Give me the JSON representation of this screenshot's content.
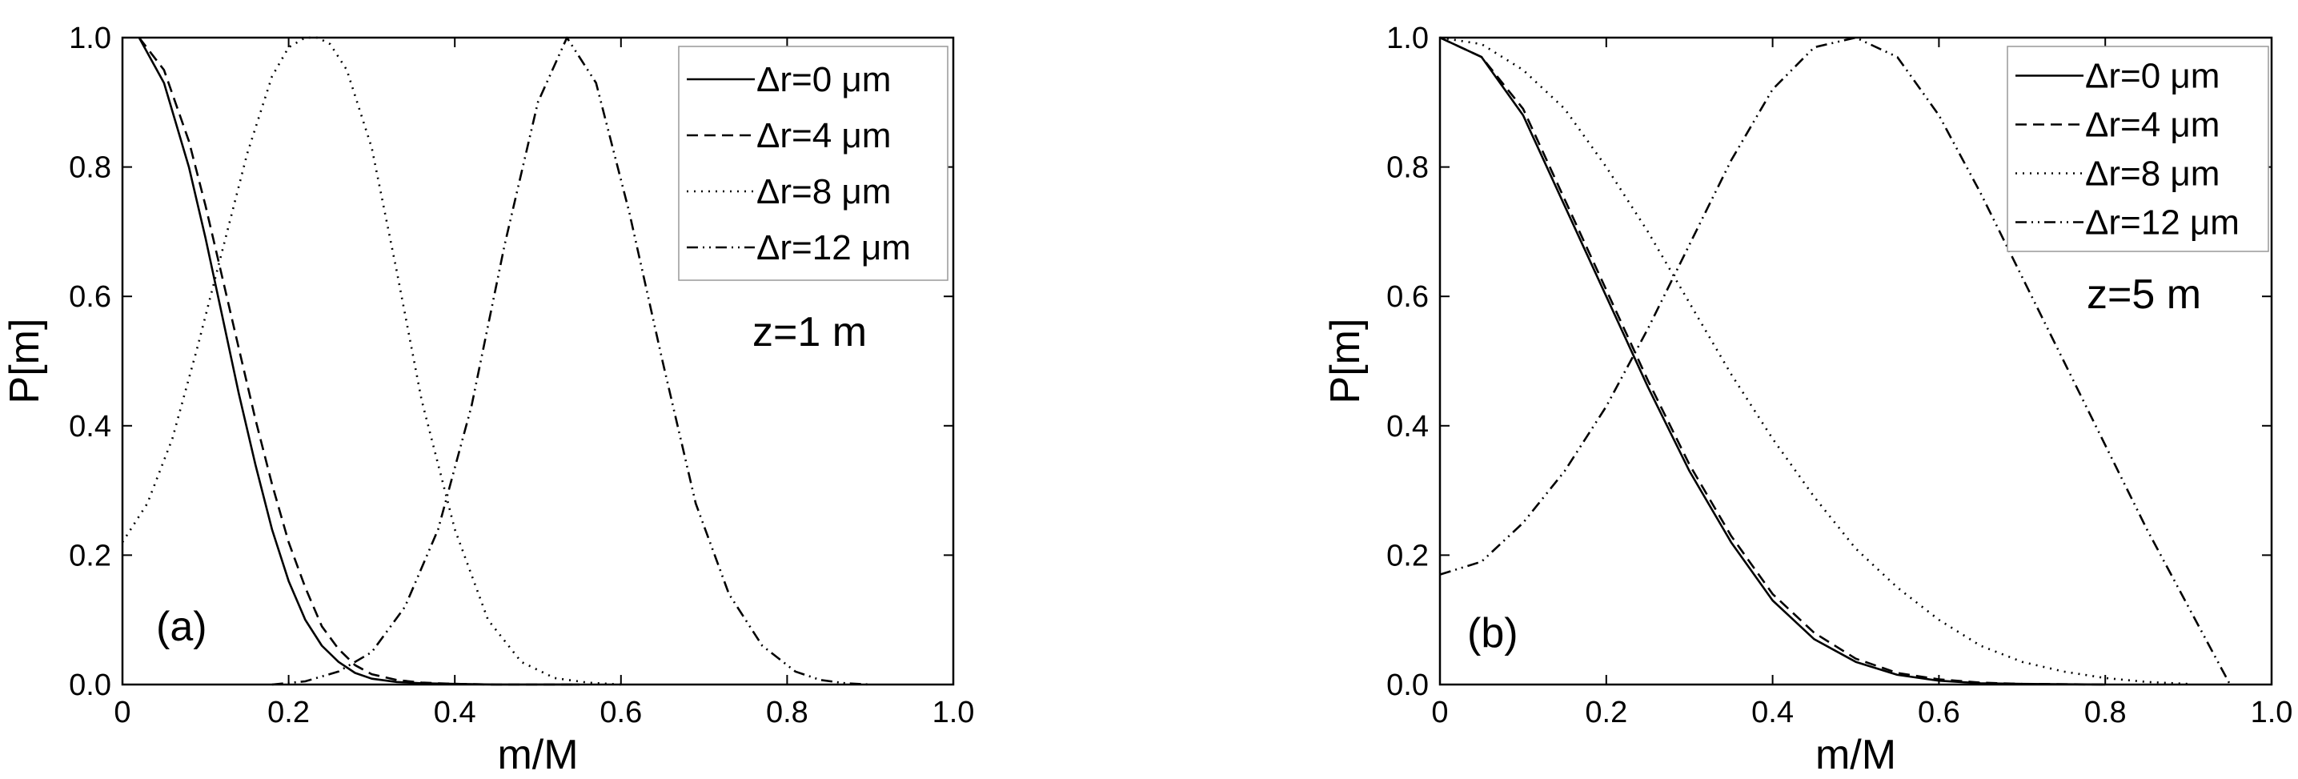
{
  "chart_data": [
    {
      "type": "line",
      "panel_label": "(a)",
      "annotation": "z=1 m",
      "xlabel": "m/M",
      "ylabel": "P[m]",
      "xlim": [
        0,
        1
      ],
      "ylim": [
        0,
        1
      ],
      "xticks": [
        "0",
        "0.2",
        "0.4",
        "0.6",
        "0.8",
        "1.0"
      ],
      "yticks": [
        "0.0",
        "0.2",
        "0.4",
        "0.6",
        "0.8",
        "1.0"
      ],
      "legend_position": "top-right",
      "series": [
        {
          "name": "Δr=0 μm",
          "dash": "solid",
          "x": [
            0.02,
            0.05,
            0.08,
            0.1,
            0.12,
            0.14,
            0.16,
            0.18,
            0.2,
            0.22,
            0.24,
            0.26,
            0.28,
            0.3,
            0.33,
            0.36,
            0.4,
            0.45,
            0.5,
            0.55
          ],
          "y": [
            1.0,
            0.93,
            0.8,
            0.69,
            0.57,
            0.45,
            0.34,
            0.24,
            0.16,
            0.1,
            0.06,
            0.035,
            0.018,
            0.009,
            0.004,
            0.002,
            0.001,
            0,
            0,
            0
          ]
        },
        {
          "name": "Δr=4 μm",
          "dash": "dashed",
          "x": [
            0.02,
            0.05,
            0.08,
            0.1,
            0.12,
            0.14,
            0.16,
            0.18,
            0.2,
            0.22,
            0.24,
            0.26,
            0.28,
            0.3,
            0.33,
            0.36,
            0.4,
            0.45,
            0.5,
            0.55
          ],
          "y": [
            1.0,
            0.95,
            0.84,
            0.74,
            0.63,
            0.52,
            0.41,
            0.31,
            0.22,
            0.15,
            0.09,
            0.055,
            0.03,
            0.016,
            0.007,
            0.003,
            0.001,
            0,
            0,
            0
          ]
        },
        {
          "name": "Δr=8 μm",
          "dash": "dotted",
          "x": [
            0.0,
            0.03,
            0.06,
            0.09,
            0.12,
            0.15,
            0.18,
            0.2,
            0.22,
            0.235,
            0.25,
            0.27,
            0.3,
            0.33,
            0.36,
            0.4,
            0.44,
            0.48,
            0.52,
            0.56,
            0.6
          ],
          "y": [
            0.22,
            0.28,
            0.38,
            0.52,
            0.67,
            0.82,
            0.94,
            0.985,
            1.0,
            1.0,
            0.99,
            0.95,
            0.83,
            0.64,
            0.44,
            0.24,
            0.1,
            0.035,
            0.01,
            0.003,
            0.0
          ]
        },
        {
          "name": "Δr=12 μm",
          "dash": "dashdotdot",
          "x": [
            0.18,
            0.22,
            0.26,
            0.3,
            0.34,
            0.38,
            0.42,
            0.46,
            0.5,
            0.535,
            0.57,
            0.61,
            0.65,
            0.69,
            0.73,
            0.77,
            0.81,
            0.84,
            0.87,
            0.9
          ],
          "y": [
            0.0,
            0.005,
            0.02,
            0.05,
            0.12,
            0.24,
            0.43,
            0.68,
            0.9,
            1.0,
            0.93,
            0.73,
            0.5,
            0.28,
            0.14,
            0.06,
            0.02,
            0.007,
            0.002,
            0.0
          ]
        }
      ]
    },
    {
      "type": "line",
      "panel_label": "(b)",
      "annotation": "z=5 m",
      "xlabel": "m/M",
      "ylabel": "P[m]",
      "xlim": [
        0,
        1
      ],
      "ylim": [
        0,
        1
      ],
      "xticks": [
        "0",
        "0.2",
        "0.4",
        "0.6",
        "0.8",
        "1.0"
      ],
      "yticks": [
        "0.0",
        "0.2",
        "0.4",
        "0.6",
        "0.8",
        "1.0"
      ],
      "legend_position": "top-right",
      "series": [
        {
          "name": "Δr=0 μm",
          "dash": "solid",
          "x": [
            0.0,
            0.05,
            0.1,
            0.15,
            0.2,
            0.25,
            0.3,
            0.35,
            0.4,
            0.45,
            0.5,
            0.55,
            0.6,
            0.65,
            0.7,
            0.8
          ],
          "y": [
            1.0,
            0.97,
            0.88,
            0.74,
            0.6,
            0.46,
            0.33,
            0.22,
            0.13,
            0.07,
            0.035,
            0.015,
            0.006,
            0.002,
            0.001,
            0
          ]
        },
        {
          "name": "Δr=4 μm",
          "dash": "dashed",
          "x": [
            0.0,
            0.05,
            0.1,
            0.15,
            0.2,
            0.25,
            0.3,
            0.35,
            0.4,
            0.45,
            0.5,
            0.55,
            0.6,
            0.65,
            0.7,
            0.8
          ],
          "y": [
            1.0,
            0.97,
            0.89,
            0.75,
            0.61,
            0.47,
            0.34,
            0.23,
            0.14,
            0.08,
            0.04,
            0.018,
            0.008,
            0.003,
            0.001,
            0
          ]
        },
        {
          "name": "Δr=8 μm",
          "dash": "dotted",
          "x": [
            0.0,
            0.05,
            0.1,
            0.15,
            0.2,
            0.25,
            0.3,
            0.35,
            0.4,
            0.45,
            0.5,
            0.55,
            0.6,
            0.65,
            0.7,
            0.75,
            0.8,
            0.85,
            0.9
          ],
          "y": [
            1.0,
            0.99,
            0.95,
            0.89,
            0.8,
            0.7,
            0.59,
            0.48,
            0.38,
            0.29,
            0.21,
            0.15,
            0.1,
            0.06,
            0.035,
            0.02,
            0.01,
            0.004,
            0.001
          ]
        },
        {
          "name": "Δr=12 μm",
          "dash": "dashdotdot",
          "x": [
            0.0,
            0.05,
            0.1,
            0.15,
            0.2,
            0.25,
            0.3,
            0.35,
            0.4,
            0.45,
            0.5,
            0.55,
            0.6,
            0.65,
            0.7,
            0.75,
            0.8,
            0.85,
            0.9,
            0.95
          ],
          "y": [
            0.17,
            0.19,
            0.25,
            0.33,
            0.43,
            0.55,
            0.68,
            0.81,
            0.92,
            0.985,
            1.0,
            0.97,
            0.88,
            0.76,
            0.63,
            0.5,
            0.37,
            0.24,
            0.12,
            0.0
          ]
        }
      ]
    }
  ]
}
